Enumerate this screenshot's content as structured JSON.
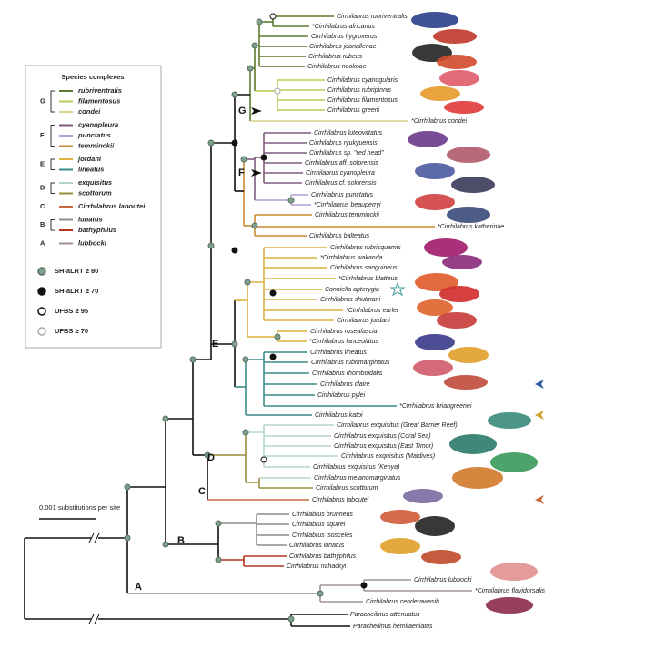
{
  "legend": {
    "title": "Species complexes",
    "groups": [
      {
        "letter": "G",
        "items": [
          "rubriventralis",
          "filamentosus",
          "condei"
        ]
      },
      {
        "letter": "F",
        "items": [
          "cyanopleura",
          "punctatus",
          "temminckii"
        ]
      },
      {
        "letter": "E",
        "items": [
          "jordani",
          "lineatus"
        ]
      },
      {
        "letter": "D",
        "items": [
          "exquisitus",
          "scottorum"
        ]
      },
      {
        "letter": "C",
        "items": [
          "Cirrhilabrus laboutei"
        ]
      },
      {
        "letter": "B",
        "items": [
          "lunatus",
          "bathyphilus"
        ]
      },
      {
        "letter": "A",
        "items": [
          "lubbocki"
        ]
      }
    ],
    "support": [
      "SH-aLRT ≥ 80",
      "SH-aLRT ≥ 70",
      "UFBS ≥ 95",
      "UFBS ≥ 70"
    ]
  },
  "clades": [
    "G",
    "F",
    "E",
    "D",
    "C",
    "B",
    "A"
  ],
  "scale_bar": "0.001 substitutions per site",
  "tips": [
    "Cirrhilabrus rubriventralis",
    "*Cirrhilabrus africanus",
    "Cirrhilabrus hygroxerus",
    "Cirrhilabrus joanallenae",
    "Cirrhilabrus rubeus",
    "Cirrhilabrus naokoae",
    "Cirrhilabrus cyanogularis",
    "Cirrhilabrus rubripinnis",
    "Cirrhilabrus filamentosus",
    "Cirrhilabrus greeni",
    "*Cirrhilabrus condei",
    "Cirrhilabrus luteovittatus",
    "Cirrhilabrus ryukyuensis",
    "Cirrhilabrus sp. \"red head\"",
    "Cirrhilabrus aff. solorensis",
    "Cirrhilabrus cyanopleura",
    "Cirrhilabrus cf. solorensis",
    "Cirrhilabrus punctatus",
    "*Cirrhilabrus beauperryi",
    "Cirrhilabrus temminckii",
    "*Cirrhilabrus katherinae",
    "Cirrhilabrus balteatus",
    "Cirrhilabrus rubrisquamis",
    "*Cirrhilabrus wakanda",
    "Cirrhilabrus sanguineus",
    "*Cirrhilabrus blatteus",
    "Conniella apterygia",
    "Cirrhilabrus shutmani",
    "*Cirrhilabrus earlei",
    "Cirrhilabrus jordani",
    "Cirrhilabrus roseafascia",
    "*Cirrhilabrus lanceolatus",
    "Cirrhilabrus lineatus",
    "Cirrhilabrus rubrimarginatus",
    "Cirrhilabrus rhomboidalis",
    "Cirrhilabrus claire",
    "Cirrhilabrus pylei",
    "*Cirrhilabrus briangreenei",
    "Cirrhilabrus katoi",
    "Cirrhilabrus exquisitus (Great Barrier Reef)",
    "Cirrhilabrus exquisitus (Coral Sea)",
    "Cirrhilabrus exquisitus (East Timor)",
    "Cirrhilabrus exquisitus (Maldives)",
    "Cirrhilabrus exquisitus (Kenya)",
    "Cirrhilabrus melanomarginatus",
    "Cirrhilabrus scottorum",
    "Cirrhilabrus laboutei",
    "Cirrhilabrus brunneus",
    "Cirrhilabrus squirei",
    "Cirrhilabrus isosceles",
    "Cirrhilabrus lunatus",
    "Cirrhilabrus bathyphilus",
    "Cirrhilabrus nahackyi",
    "Cirrhilabrus lubbocki",
    "*Cirrhilabrus flavidorsalis",
    "Cirrhilabrus cenderawasih",
    "Paracheilinus attenuatus",
    "Paracheilinus hemitaeniatus"
  ]
}
